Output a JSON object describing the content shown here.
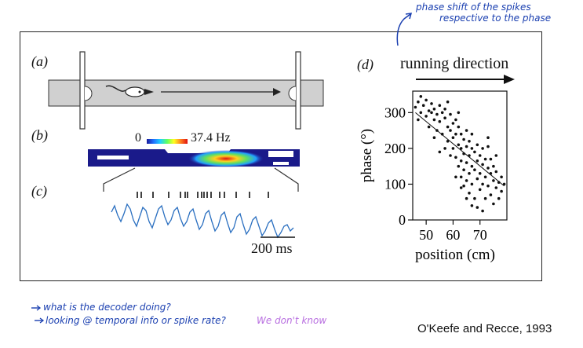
{
  "figure": {
    "panel_a": {
      "label": "(a)"
    },
    "panel_b": {
      "label": "(b)",
      "scale_min": "0",
      "scale_max": "37.4 Hz"
    },
    "panel_c": {
      "label": "(c)",
      "scale_bar": "200 ms"
    },
    "panel_d": {
      "label": "(d)",
      "direction": "running direction"
    }
  },
  "annotations": {
    "top_right": [
      "phase shift of the spikes",
      "respective to the phase"
    ],
    "bottom_left_1": "what is the decoder doing?",
    "bottom_left_2": "looking @ temporal info or spike rate?",
    "bottom_left_3": "We don't know",
    "colors": {
      "blue_ink": "#1a3fb0",
      "purple_ink": "#b86ee0"
    }
  },
  "citation": "O'Keefe and Recce, 1993",
  "chart_data": {
    "type": "scatter",
    "xlabel": "position (cm)",
    "ylabel": "phase (°)",
    "x_ticks": [
      "50",
      "60",
      "70"
    ],
    "y_ticks": [
      "0",
      "100",
      "200",
      "300"
    ],
    "xlim": [
      45,
      80
    ],
    "ylim": [
      0,
      360
    ],
    "fit_line": [
      [
        46,
        300
      ],
      [
        79,
        95
      ]
    ],
    "points": [
      [
        46,
        315
      ],
      [
        47,
        330
      ],
      [
        47,
        280
      ],
      [
        48,
        345
      ],
      [
        48,
        300
      ],
      [
        49,
        320
      ],
      [
        50,
        290
      ],
      [
        50,
        335
      ],
      [
        51,
        305
      ],
      [
        51,
        260
      ],
      [
        52,
        300
      ],
      [
        52,
        325
      ],
      [
        53,
        280
      ],
      [
        53,
        310
      ],
      [
        54,
        295
      ],
      [
        54,
        250
      ],
      [
        55,
        320
      ],
      [
        55,
        275
      ],
      [
        56,
        300
      ],
      [
        56,
        240
      ],
      [
        57,
        285
      ],
      [
        57,
        310
      ],
      [
        58,
        260
      ],
      [
        58,
        220
      ],
      [
        59,
        295
      ],
      [
        59,
        250
      ],
      [
        60,
        270
      ],
      [
        60,
        230
      ],
      [
        60,
        200
      ],
      [
        61,
        280
      ],
      [
        61,
        240
      ],
      [
        61,
        175
      ],
      [
        62,
        260
      ],
      [
        62,
        210
      ],
      [
        62,
        150
      ],
      [
        63,
        240
      ],
      [
        63,
        200
      ],
      [
        63,
        165
      ],
      [
        63,
        120
      ],
      [
        64,
        225
      ],
      [
        64,
        185
      ],
      [
        64,
        140
      ],
      [
        64,
        95
      ],
      [
        65,
        250
      ],
      [
        65,
        205
      ],
      [
        65,
        160
      ],
      [
        65,
        110
      ],
      [
        66,
        220
      ],
      [
        66,
        180
      ],
      [
        66,
        130
      ],
      [
        66,
        75
      ],
      [
        67,
        200
      ],
      [
        67,
        150
      ],
      [
        67,
        100
      ],
      [
        67,
        240
      ],
      [
        68,
        190
      ],
      [
        68,
        140
      ],
      [
        68,
        60
      ],
      [
        69,
        210
      ],
      [
        69,
        165
      ],
      [
        69,
        115
      ],
      [
        69,
        35
      ],
      [
        70,
        180
      ],
      [
        70,
        130
      ],
      [
        70,
        85
      ],
      [
        71,
        155
      ],
      [
        71,
        100
      ],
      [
        71,
        25
      ],
      [
        72,
        170
      ],
      [
        72,
        120
      ],
      [
        72,
        60
      ],
      [
        73,
        145
      ],
      [
        73,
        95
      ],
      [
        73,
        205
      ],
      [
        74,
        130
      ],
      [
        74,
        70
      ],
      [
        74,
        170
      ],
      [
        75,
        110
      ],
      [
        75,
        45
      ],
      [
        75,
        150
      ],
      [
        76,
        90
      ],
      [
        76,
        135
      ],
      [
        77,
        105
      ],
      [
        77,
        60
      ],
      [
        78,
        120
      ],
      [
        78,
        80
      ],
      [
        79,
        100
      ],
      [
        57,
        200
      ],
      [
        59,
        180
      ],
      [
        61,
        120
      ],
      [
        63,
        90
      ],
      [
        65,
        60
      ],
      [
        67,
        40
      ],
      [
        55,
        190
      ],
      [
        53,
        230
      ],
      [
        71,
        200
      ],
      [
        73,
        230
      ],
      [
        76,
        180
      ],
      [
        62,
        300
      ],
      [
        58,
        330
      ]
    ]
  }
}
